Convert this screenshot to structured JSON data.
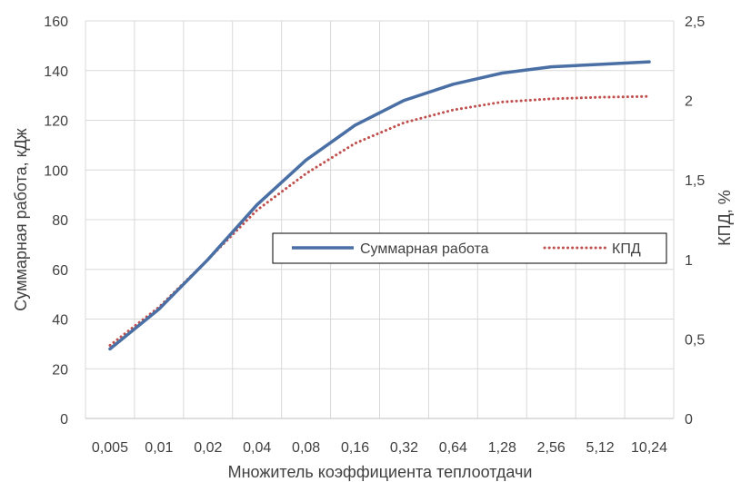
{
  "chart_data": {
    "type": "line",
    "categories": [
      "0,005",
      "0,01",
      "0,02",
      "0,04",
      "0,08",
      "0,16",
      "0,32",
      "0,64",
      "1,28",
      "2,56",
      "5,12",
      "10,24"
    ],
    "series": [
      {
        "name": "Суммарная работа",
        "axis": "left",
        "color": "#4a6fa5",
        "style": "solid",
        "values": [
          28,
          44,
          64,
          86,
          104,
          118,
          128,
          134.5,
          139,
          141.5,
          142.5,
          143.5
        ]
      },
      {
        "name": "КПД",
        "axis": "right",
        "color": "#c0504d",
        "style": "dotted",
        "values": [
          0.46,
          0.7,
          1.0,
          1.31,
          1.54,
          1.73,
          1.86,
          1.94,
          1.99,
          2.01,
          2.02,
          2.025
        ]
      }
    ],
    "xlabel": "Множитель коэффициента теплоотдачи",
    "ylabel": "Суммарная работа, кДж",
    "y2label": "КПД, %",
    "ylim": [
      0,
      160
    ],
    "y2lim": [
      0,
      2.5
    ],
    "yticks": [
      "0",
      "20",
      "40",
      "60",
      "80",
      "100",
      "120",
      "140",
      "160"
    ],
    "y2ticks": [
      "0",
      "0,5",
      "1",
      "1,5",
      "2",
      "2,5"
    ],
    "grid": true,
    "legend_position": "right-middle"
  }
}
